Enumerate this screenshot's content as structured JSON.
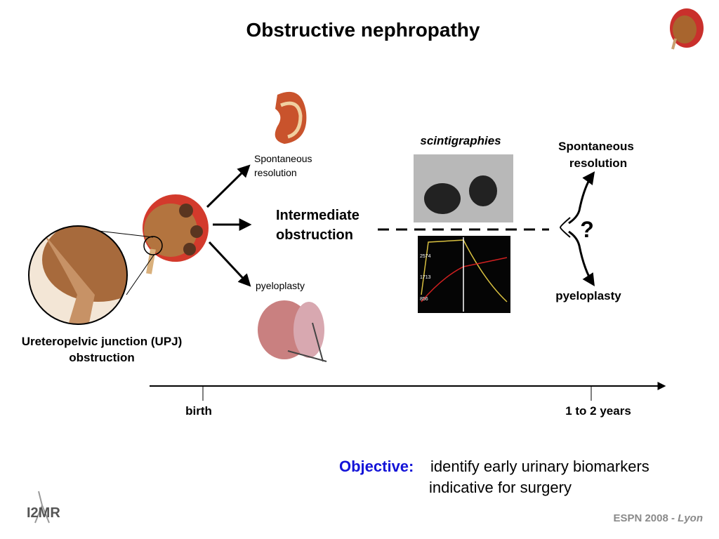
{
  "title": "Obstructive nephropathy",
  "upj_label": [
    "Ureteropelvic junction (UPJ)",
    "obstruction"
  ],
  "branches": {
    "upper": [
      "Spontaneous",
      "resolution"
    ],
    "middle": [
      "Intermediate",
      "obstruction"
    ],
    "lower": "pyeloplasty"
  },
  "scintigraphy_label": "scintigraphies",
  "renogram_ticks": [
    "2574",
    "1713",
    "856"
  ],
  "outcomes": {
    "upper": [
      "Spontaneous",
      "resolution"
    ],
    "question": "?",
    "lower": "pyeloplasty"
  },
  "timeline": {
    "start": "birth",
    "end": "1 to 2 years"
  },
  "objective": {
    "label": "Objective:",
    "lines": [
      "identify early urinary biomarkers",
      "indicative for surgery"
    ]
  },
  "footer": {
    "event": "ESPN 2008 - ",
    "city": "Lyon"
  },
  "logo": "I2MR"
}
